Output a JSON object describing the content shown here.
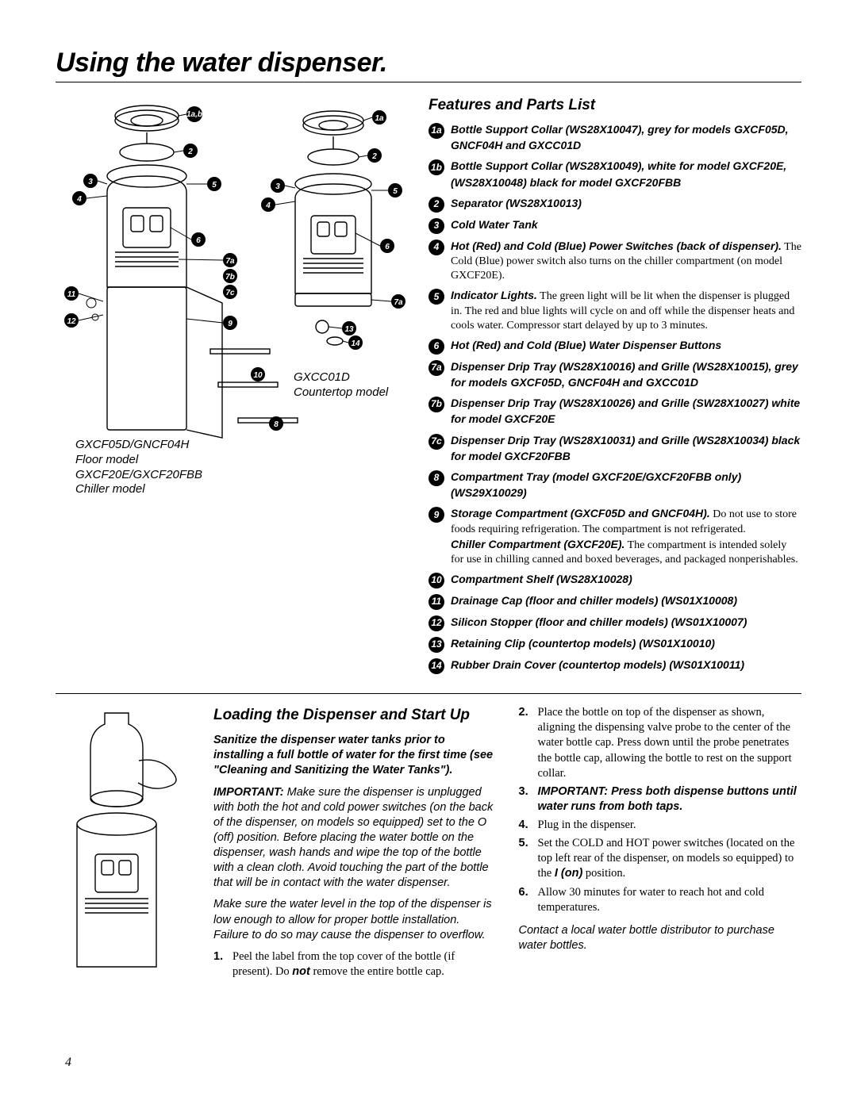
{
  "page": {
    "title": "Using the water dispenser.",
    "number": "4"
  },
  "diagram": {
    "left_model_line1": "GXCF05D/GNCF04H",
    "left_model_line2": "Floor model",
    "left_model_line3": "GXCF20E/GXCF20FBB",
    "left_model_line4": "Chiller model",
    "right_model_line1": "GXCC01D",
    "right_model_line2": "Countertop model",
    "callouts_left": [
      "1a,b",
      "2",
      "3",
      "4",
      "5",
      "6",
      "7a",
      "7b",
      "7c",
      "9",
      "10",
      "8",
      "11",
      "12"
    ],
    "callouts_right": [
      "1a",
      "2",
      "3",
      "4",
      "5",
      "6",
      "7a",
      "13",
      "14"
    ],
    "stroke": "#000000",
    "fill": "#ffffff"
  },
  "features": {
    "heading": "Features and Parts List",
    "items": [
      {
        "badge": "1a",
        "bold": "Bottle Support Collar (WS28X10047), grey for models GXCF05D, GNCF04H and GXCC01D",
        "plain": ""
      },
      {
        "badge": "1b",
        "bold": "Bottle Support Collar (WS28X10049), white for model GXCF20E, (WS28X10048) black for model GXCF20FBB",
        "plain": ""
      },
      {
        "badge": "2",
        "bold": "Separator (WS28X10013)",
        "plain": ""
      },
      {
        "badge": "3",
        "bold": "Cold Water Tank",
        "plain": ""
      },
      {
        "badge": "4",
        "bold": "Hot (Red) and Cold (Blue) Power Switches (back of dispenser).",
        "plain": " The Cold (Blue) power switch also turns on the chiller compartment (on model GXCF20E)."
      },
      {
        "badge": "5",
        "bold": "Indicator Lights.",
        "plain": " The green light will be lit when the dispenser is plugged in. The red and blue lights will cycle on and off while the dispenser heats and cools water. Compressor start delayed by up to 3 minutes."
      },
      {
        "badge": "6",
        "bold": "Hot (Red) and Cold (Blue) Water Dispenser Buttons",
        "plain": ""
      },
      {
        "badge": "7a",
        "bold": "Dispenser Drip Tray (WS28X10016) and Grille (WS28X10015), grey for models GXCF05D, GNCF04H and GXCC01D",
        "plain": ""
      },
      {
        "badge": "7b",
        "bold": "Dispenser Drip Tray (WS28X10026) and Grille (SW28X10027) white for model GXCF20E",
        "plain": ""
      },
      {
        "badge": "7c",
        "bold": "Dispenser Drip Tray (WS28X10031) and Grille (WS28X10034) black for model GXCF20FBB",
        "plain": ""
      },
      {
        "badge": "8",
        "bold": "Compartment Tray (model GXCF20E/GXCF20FBB only) (WS29X10029)",
        "plain": ""
      },
      {
        "badge": "9",
        "bold": "Storage Compartment (GXCF05D and GNCF04H).",
        "plain": " Do not use to store foods requiring refrigeration. The compartment is not refrigerated.",
        "extra_bold": "Chiller Compartment (GXCF20E).",
        "extra_plain": " The compartment is intended solely for use in chilling canned and boxed beverages, and packaged nonperishables."
      },
      {
        "badge": "10",
        "bold": "Compartment Shelf (WS28X10028)",
        "plain": ""
      },
      {
        "badge": "11",
        "bold": "Drainage Cap (floor and chiller models) (WS01X10008)",
        "plain": ""
      },
      {
        "badge": "12",
        "bold": "Silicon Stopper (floor and chiller models) (WS01X10007)",
        "plain": ""
      },
      {
        "badge": "13",
        "bold": "Retaining Clip (countertop models) (WS01X10010)",
        "plain": ""
      },
      {
        "badge": "14",
        "bold": "Rubber Drain Cover (countertop models) (WS01X10011)",
        "plain": ""
      }
    ]
  },
  "loading": {
    "heading": "Loading the Dispenser and Start Up",
    "lead_bold": "Sanitize the dispenser water tanks prior to installing a full bottle of water for the first time (see \"Cleaning and Sanitizing the Water Tanks\").",
    "important_label": "IMPORTANT:",
    "important_body": " Make sure the dispenser is unplugged with both the hot and cold power switches (on the back of the dispenser, on models so equipped) set to the O (off) position. Before placing the water bottle on the dispenser, wash hands and wipe the top of the bottle with a clean cloth. Avoid touching the part of the bottle that will be in contact with the water dispenser.",
    "level_note": "Make sure the water level in the top of the dispenser is low enough to allow for proper bottle installation. Failure to do so may cause the dispenser to overflow.",
    "steps_left": [
      {
        "num": "1.",
        "text": "Peel the label from the top cover of the bottle (if present). Do ",
        "bold": "not",
        "tail": " remove the entire bottle cap."
      }
    ],
    "steps_right": [
      {
        "num": "2.",
        "text": "Place the bottle on top of the dispenser as shown, aligning the dispensing valve probe to the center of the water bottle cap. Press down until the probe penetrates the bottle cap, allowing the bottle to rest on the support collar."
      },
      {
        "num": "3.",
        "bold_full": "IMPORTANT: Press both dispense buttons until water runs from both taps."
      },
      {
        "num": "4.",
        "text": "Plug in the dispenser."
      },
      {
        "num": "5.",
        "text": "Set the COLD and HOT power switches (located on the top left rear of the dispenser, on models so equipped) to the ",
        "bold": "I (on)",
        "tail": " position."
      },
      {
        "num": "6.",
        "text": "Allow 30 minutes for water to reach hot and cold temperatures."
      }
    ],
    "contact_note": "Contact a local water bottle distributor to purchase water bottles."
  }
}
